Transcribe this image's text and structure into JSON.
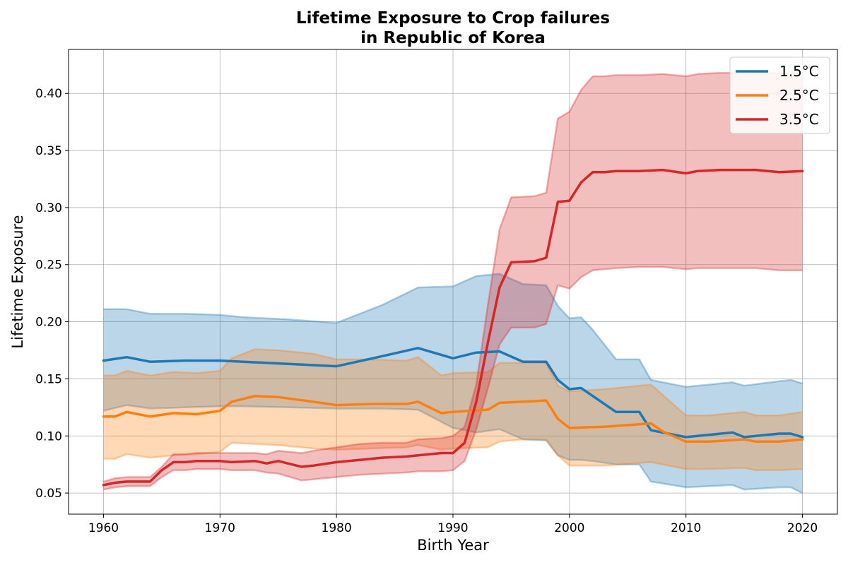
{
  "chart_data": {
    "type": "line",
    "title_line1": "Lifetime Exposure to Crop failures",
    "title_line2": "in Republic of Korea",
    "xlabel": "Birth Year",
    "ylabel": "Lifetime Exposure",
    "xlim": [
      1957,
      2023
    ],
    "ylim": [
      0.0315,
      0.4385
    ],
    "xticks": [
      1960,
      1970,
      1980,
      1990,
      2000,
      2010,
      2020
    ],
    "xtick_labels": [
      "1960",
      "1970",
      "1980",
      "1990",
      "2000",
      "2010",
      "2020"
    ],
    "yticks": [
      0.05,
      0.1,
      0.15,
      0.2,
      0.25,
      0.3,
      0.35,
      0.4
    ],
    "ytick_labels": [
      "0.05",
      "0.10",
      "0.15",
      "0.20",
      "0.25",
      "0.30",
      "0.35",
      "0.40"
    ],
    "grid": true,
    "legend_position": "top-right",
    "series": [
      {
        "name": "1.5°C",
        "color": "#1f77b4",
        "x": [
          1960,
          1962,
          1964,
          1967,
          1970,
          1972,
          1976,
          1980,
          1984,
          1987,
          1990,
          1992,
          1994,
          1996,
          1998,
          1999,
          2000,
          2001,
          2002,
          2004,
          2006,
          2007,
          2010,
          2012,
          2014,
          2015,
          2018,
          2019,
          2020
        ],
        "mean": [
          0.166,
          0.169,
          0.165,
          0.166,
          0.166,
          0.165,
          0.163,
          0.161,
          0.17,
          0.177,
          0.168,
          0.173,
          0.174,
          0.165,
          0.165,
          0.149,
          0.141,
          0.142,
          0.135,
          0.121,
          0.121,
          0.105,
          0.099,
          0.101,
          0.103,
          0.099,
          0.102,
          0.102,
          0.099
        ],
        "upper": [
          0.211,
          0.211,
          0.207,
          0.207,
          0.206,
          0.204,
          0.202,
          0.199,
          0.215,
          0.23,
          0.231,
          0.24,
          0.242,
          0.233,
          0.232,
          0.214,
          0.203,
          0.204,
          0.193,
          0.167,
          0.167,
          0.149,
          0.143,
          0.145,
          0.147,
          0.144,
          0.148,
          0.149,
          0.146
        ],
        "lower": [
          0.122,
          0.127,
          0.124,
          0.125,
          0.126,
          0.126,
          0.125,
          0.124,
          0.124,
          0.123,
          0.107,
          0.103,
          0.106,
          0.097,
          0.096,
          0.083,
          0.079,
          0.079,
          0.078,
          0.075,
          0.075,
          0.06,
          0.055,
          0.056,
          0.057,
          0.053,
          0.055,
          0.055,
          0.05
        ]
      },
      {
        "name": "2.5°C",
        "color": "#ff7f0e",
        "x": [
          1960,
          1961,
          1962,
          1964,
          1966,
          1968,
          1970,
          1971,
          1973,
          1975,
          1978,
          1980,
          1983,
          1986,
          1987,
          1989,
          1990,
          1993,
          1994,
          1996,
          1998,
          1999,
          2000,
          2003,
          2007,
          2008,
          2010,
          2012,
          2015,
          2016,
          2018,
          2020
        ],
        "mean": [
          0.117,
          0.117,
          0.121,
          0.117,
          0.12,
          0.119,
          0.122,
          0.13,
          0.135,
          0.134,
          0.13,
          0.127,
          0.128,
          0.128,
          0.13,
          0.12,
          0.121,
          0.123,
          0.129,
          0.13,
          0.131,
          0.115,
          0.107,
          0.108,
          0.111,
          0.104,
          0.095,
          0.095,
          0.097,
          0.095,
          0.095,
          0.097
        ],
        "upper": [
          0.153,
          0.153,
          0.157,
          0.153,
          0.156,
          0.155,
          0.157,
          0.168,
          0.176,
          0.175,
          0.172,
          0.167,
          0.167,
          0.166,
          0.169,
          0.153,
          0.155,
          0.156,
          0.164,
          0.164,
          0.164,
          0.144,
          0.139,
          0.141,
          0.145,
          0.136,
          0.118,
          0.118,
          0.121,
          0.118,
          0.118,
          0.121
        ],
        "lower": [
          0.08,
          0.08,
          0.084,
          0.081,
          0.083,
          0.084,
          0.086,
          0.094,
          0.093,
          0.092,
          0.089,
          0.088,
          0.089,
          0.09,
          0.092,
          0.088,
          0.089,
          0.09,
          0.095,
          0.097,
          0.097,
          0.083,
          0.074,
          0.074,
          0.077,
          0.075,
          0.071,
          0.071,
          0.072,
          0.07,
          0.07,
          0.071
        ]
      },
      {
        "name": "3.5°C",
        "color": "#d62728",
        "x": [
          1960,
          1961,
          1962,
          1964,
          1965,
          1966,
          1967,
          1968,
          1970,
          1971,
          1973,
          1974,
          1975,
          1977,
          1978,
          1980,
          1982,
          1984,
          1986,
          1987,
          1989,
          1990,
          1991,
          1992,
          1993,
          1994,
          1995,
          1997,
          1998,
          1999,
          2000,
          2001,
          2002,
          2003,
          2004,
          2006,
          2008,
          2010,
          2011,
          2013,
          2016,
          2018,
          2020
        ],
        "mean": [
          0.057,
          0.059,
          0.06,
          0.06,
          0.07,
          0.077,
          0.077,
          0.078,
          0.078,
          0.077,
          0.078,
          0.076,
          0.078,
          0.073,
          0.074,
          0.077,
          0.079,
          0.081,
          0.082,
          0.083,
          0.085,
          0.085,
          0.094,
          0.13,
          0.182,
          0.23,
          0.252,
          0.253,
          0.256,
          0.305,
          0.306,
          0.322,
          0.331,
          0.331,
          0.332,
          0.332,
          0.333,
          0.33,
          0.332,
          0.333,
          0.333,
          0.331,
          0.332
        ],
        "upper": [
          0.06,
          0.063,
          0.064,
          0.064,
          0.073,
          0.084,
          0.084,
          0.085,
          0.085,
          0.085,
          0.085,
          0.084,
          0.087,
          0.085,
          0.087,
          0.09,
          0.093,
          0.094,
          0.094,
          0.097,
          0.098,
          0.1,
          0.108,
          0.145,
          0.215,
          0.281,
          0.309,
          0.31,
          0.313,
          0.378,
          0.384,
          0.403,
          0.415,
          0.415,
          0.416,
          0.416,
          0.417,
          0.415,
          0.417,
          0.418,
          0.418,
          0.418,
          0.418
        ],
        "lower": [
          0.053,
          0.055,
          0.056,
          0.056,
          0.064,
          0.07,
          0.07,
          0.071,
          0.071,
          0.07,
          0.07,
          0.068,
          0.067,
          0.061,
          0.062,
          0.064,
          0.066,
          0.067,
          0.068,
          0.069,
          0.069,
          0.07,
          0.078,
          0.106,
          0.142,
          0.18,
          0.195,
          0.195,
          0.198,
          0.232,
          0.229,
          0.239,
          0.245,
          0.246,
          0.247,
          0.248,
          0.248,
          0.246,
          0.247,
          0.247,
          0.247,
          0.245,
          0.245
        ]
      }
    ]
  }
}
